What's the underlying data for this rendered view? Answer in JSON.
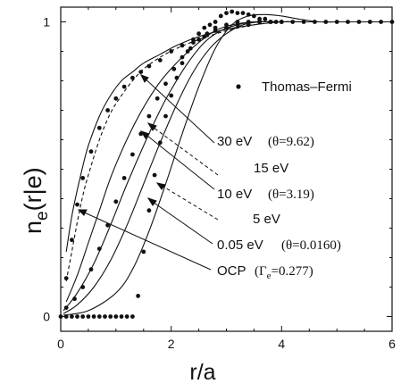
{
  "chart_data": {
    "type": "line",
    "xlabel": "r/a",
    "ylabel": "n",
    "ylabel_sub": "e",
    "ylabel_rest": "(r|e)",
    "xlim": [
      0,
      6
    ],
    "ylim": [
      -0.05,
      1.05
    ],
    "x_ticks": [
      0,
      2,
      4,
      6
    ],
    "x_tick_labels": [
      "0",
      "2",
      "4",
      "6"
    ],
    "y_ticks": [
      0,
      1
    ],
    "y_tick_labels": [
      "0",
      "1"
    ],
    "grid": false,
    "legend": {
      "marker_label": "Thomas–Fermi",
      "placement": "top-right"
    },
    "annotations": [
      {
        "text": "30 eV",
        "extra": "(θ=9.62)"
      },
      {
        "text": "15 eV",
        "extra": ""
      },
      {
        "text": "10 eV",
        "extra": "(θ=3.19)"
      },
      {
        "text": "5 eV",
        "extra": ""
      },
      {
        "text": "0.05 eV",
        "extra": "(θ=0.0160)"
      },
      {
        "text": "OCP",
        "extra": "(Γ",
        "extra_sub": "e",
        "extra_tail": "=0.277)"
      }
    ],
    "series": [
      {
        "style": "solid",
        "x": [
          0.1,
          0.2,
          0.3,
          0.4,
          0.5,
          0.7,
          0.9,
          1.1,
          1.3,
          1.5,
          1.8,
          2.1,
          2.5,
          3.0,
          3.5,
          4.0,
          4.5,
          5.0,
          5.5,
          6.0
        ],
        "y": [
          0.22,
          0.34,
          0.43,
          0.51,
          0.58,
          0.68,
          0.75,
          0.8,
          0.83,
          0.86,
          0.89,
          0.92,
          0.95,
          0.975,
          0.99,
          1.0,
          1.0,
          1.0,
          1.0,
          1.0
        ]
      },
      {
        "style": "dashed",
        "x": [
          0.1,
          0.2,
          0.3,
          0.4,
          0.5,
          0.7,
          0.9,
          1.1,
          1.3,
          1.5,
          1.8,
          2.1,
          2.5,
          3.0,
          3.5,
          4.0,
          4.5,
          5.0,
          5.5,
          6.0
        ],
        "y": [
          0.12,
          0.22,
          0.32,
          0.41,
          0.48,
          0.6,
          0.69,
          0.75,
          0.8,
          0.84,
          0.88,
          0.91,
          0.94,
          0.97,
          0.99,
          1.0,
          1.0,
          1.0,
          1.0,
          1.0
        ]
      },
      {
        "style": "solid",
        "x": [
          0.1,
          0.3,
          0.5,
          0.7,
          0.9,
          1.1,
          1.3,
          1.5,
          1.7,
          1.9,
          2.2,
          2.5,
          2.8,
          3.1,
          3.5,
          4.0,
          4.5,
          5.0,
          5.5,
          6.0
        ],
        "y": [
          0.05,
          0.14,
          0.25,
          0.36,
          0.47,
          0.56,
          0.64,
          0.71,
          0.77,
          0.82,
          0.88,
          0.93,
          0.97,
          0.99,
          1.0,
          1.0,
          1.0,
          1.0,
          1.0,
          1.0
        ]
      },
      {
        "style": "solid",
        "x": [
          0.05,
          0.3,
          0.6,
          0.9,
          1.2,
          1.5,
          1.8,
          2.0,
          2.3,
          2.6,
          2.9,
          3.2,
          3.5,
          4.0,
          4.5,
          5.0,
          5.5,
          6.0
        ],
        "y": [
          0.02,
          0.08,
          0.18,
          0.31,
          0.45,
          0.58,
          0.7,
          0.77,
          0.86,
          0.93,
          0.97,
          0.99,
          1.0,
          1.0,
          1.0,
          1.0,
          1.0,
          1.0
        ]
      },
      {
        "style": "solid",
        "x": [
          0.05,
          0.3,
          0.6,
          0.9,
          1.2,
          1.5,
          1.8,
          2.1,
          2.4,
          2.7,
          3.0,
          3.3,
          3.6,
          4.0,
          4.5,
          5.0,
          5.5,
          6.0
        ],
        "y": [
          0.01,
          0.04,
          0.1,
          0.19,
          0.31,
          0.45,
          0.59,
          0.72,
          0.83,
          0.91,
          0.96,
          0.99,
          1.0,
          1.0,
          1.0,
          1.0,
          1.0,
          1.0
        ]
      },
      {
        "style": "solid",
        "x": [
          0.05,
          0.5,
          1.0,
          1.3,
          1.6,
          1.9,
          2.2,
          2.5,
          2.8,
          3.1,
          3.4,
          3.7,
          4.0,
          4.3,
          4.7,
          5.0,
          5.5,
          6.0
        ],
        "y": [
          0.005,
          0.02,
          0.08,
          0.16,
          0.29,
          0.45,
          0.62,
          0.78,
          0.91,
          0.99,
          1.02,
          1.025,
          1.02,
          1.01,
          1.0,
          1.0,
          1.0,
          1.0
        ]
      }
    ],
    "markers": {
      "name": "Thomas–Fermi",
      "groups": [
        {
          "x": [
            0.1,
            0.2,
            0.3,
            0.4,
            0.55,
            0.7,
            0.85,
            1.0,
            1.15,
            1.3,
            1.45,
            1.6,
            1.8,
            2.0,
            2.2,
            2.4,
            2.6,
            2.8,
            3.0,
            3.2,
            3.4,
            3.6,
            3.8,
            4.0,
            4.2,
            4.4,
            4.6,
            4.8,
            5.0,
            5.2,
            5.4,
            5.6,
            5.8,
            6.0
          ],
          "y": [
            0.13,
            0.26,
            0.38,
            0.47,
            0.56,
            0.64,
            0.7,
            0.74,
            0.78,
            0.81,
            0.83,
            0.85,
            0.87,
            0.9,
            0.92,
            0.94,
            0.95,
            0.97,
            0.98,
            0.99,
            0.99,
            1.0,
            1.0,
            1.0,
            1.0,
            1.0,
            1.0,
            1.0,
            1.0,
            1.0,
            1.0,
            1.0,
            1.0,
            1.0
          ]
        },
        {
          "x": [
            0.1,
            0.25,
            0.4,
            0.55,
            0.7,
            0.85,
            1.0,
            1.15,
            1.3,
            1.45,
            1.6,
            1.75,
            1.9,
            2.05,
            2.2,
            2.35,
            2.5,
            2.65,
            2.8,
            3.0,
            3.2,
            3.4,
            3.6
          ],
          "y": [
            0.03,
            0.06,
            0.1,
            0.16,
            0.23,
            0.31,
            0.39,
            0.47,
            0.55,
            0.62,
            0.68,
            0.74,
            0.79,
            0.84,
            0.88,
            0.91,
            0.94,
            0.96,
            0.98,
            0.99,
            1.0,
            1.0,
            1.0
          ]
        },
        {
          "x": [
            0.0,
            0.1,
            0.2,
            0.3,
            0.4,
            0.5,
            0.6,
            0.7,
            0.8,
            0.9,
            1.0,
            1.1,
            1.2,
            1.3,
            1.4,
            1.5,
            1.6,
            1.7,
            1.8,
            1.9,
            2.0,
            2.1,
            2.2,
            2.3,
            2.4,
            2.5,
            2.6,
            2.7,
            2.8,
            2.9,
            3.0,
            3.1,
            3.2,
            3.3,
            3.4,
            3.5,
            3.6,
            3.7,
            3.8,
            3.9,
            4.0
          ],
          "y": [
            0,
            0,
            0,
            0,
            0,
            0,
            0,
            0,
            0,
            0,
            0,
            0,
            0,
            0,
            0.07,
            0.22,
            0.36,
            0.48,
            0.59,
            0.68,
            0.75,
            0.81,
            0.86,
            0.9,
            0.93,
            0.96,
            0.98,
            0.99,
            1.0,
            1.02,
            1.03,
            1.035,
            1.03,
            1.03,
            1.025,
            1.02,
            1.01,
            1.01,
            1.0,
            1.0,
            1.0
          ]
        }
      ]
    }
  }
}
